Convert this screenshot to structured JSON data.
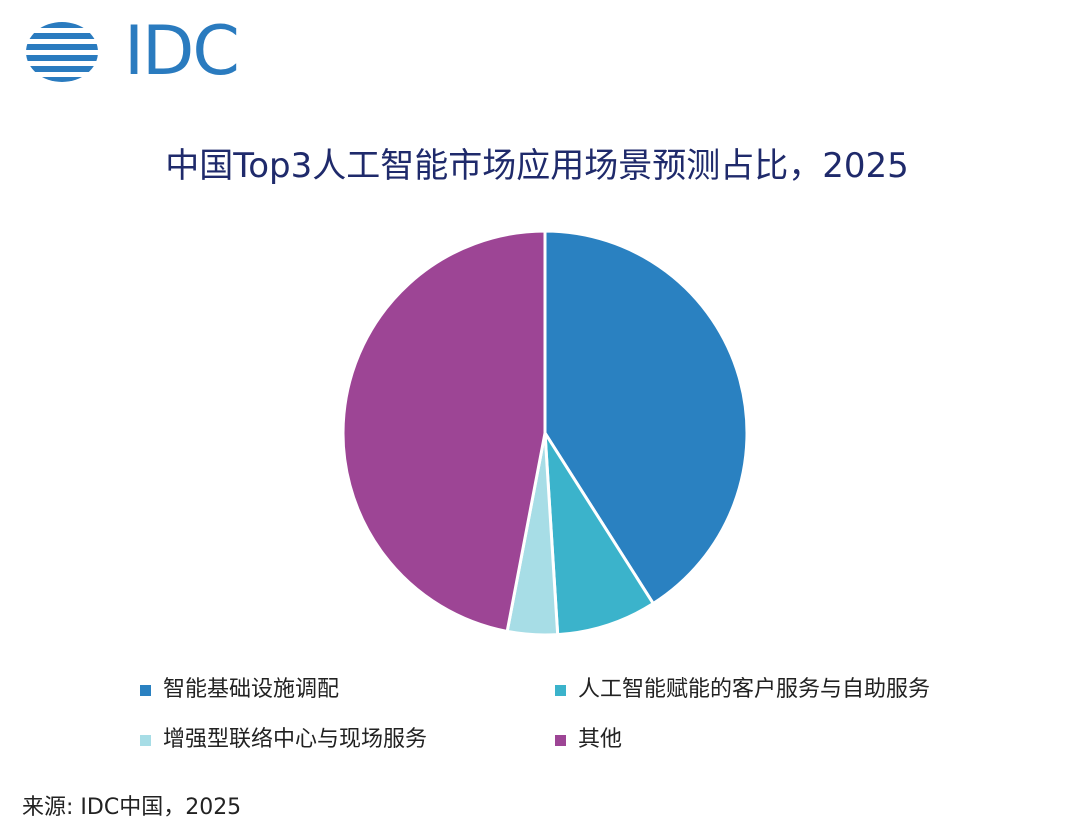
{
  "brand": {
    "logo_text": "IDC",
    "logo_color": "#2a7bbf"
  },
  "chart_data": {
    "type": "pie",
    "title": "中国Top3人工智能市场应用场景预测占比，2025",
    "unit": "%",
    "slices": [
      {
        "label": "智能基础设施调配",
        "value": 41.0,
        "color": "#2a81c1"
      },
      {
        "label": "人工智能赋能的客户服务与自助服务",
        "value": 8.0,
        "color": "#3bb3cb"
      },
      {
        "label": "增强型联络中心与现场服务",
        "value": 4.0,
        "color": "#a7dde6"
      },
      {
        "label": "其他",
        "value": 47.0,
        "color": "#9d4595"
      }
    ],
    "start_angle_deg": 0,
    "direction": "clockwise",
    "legend_position": "bottom"
  },
  "footer": {
    "source": "来源: IDC中国，2025"
  }
}
